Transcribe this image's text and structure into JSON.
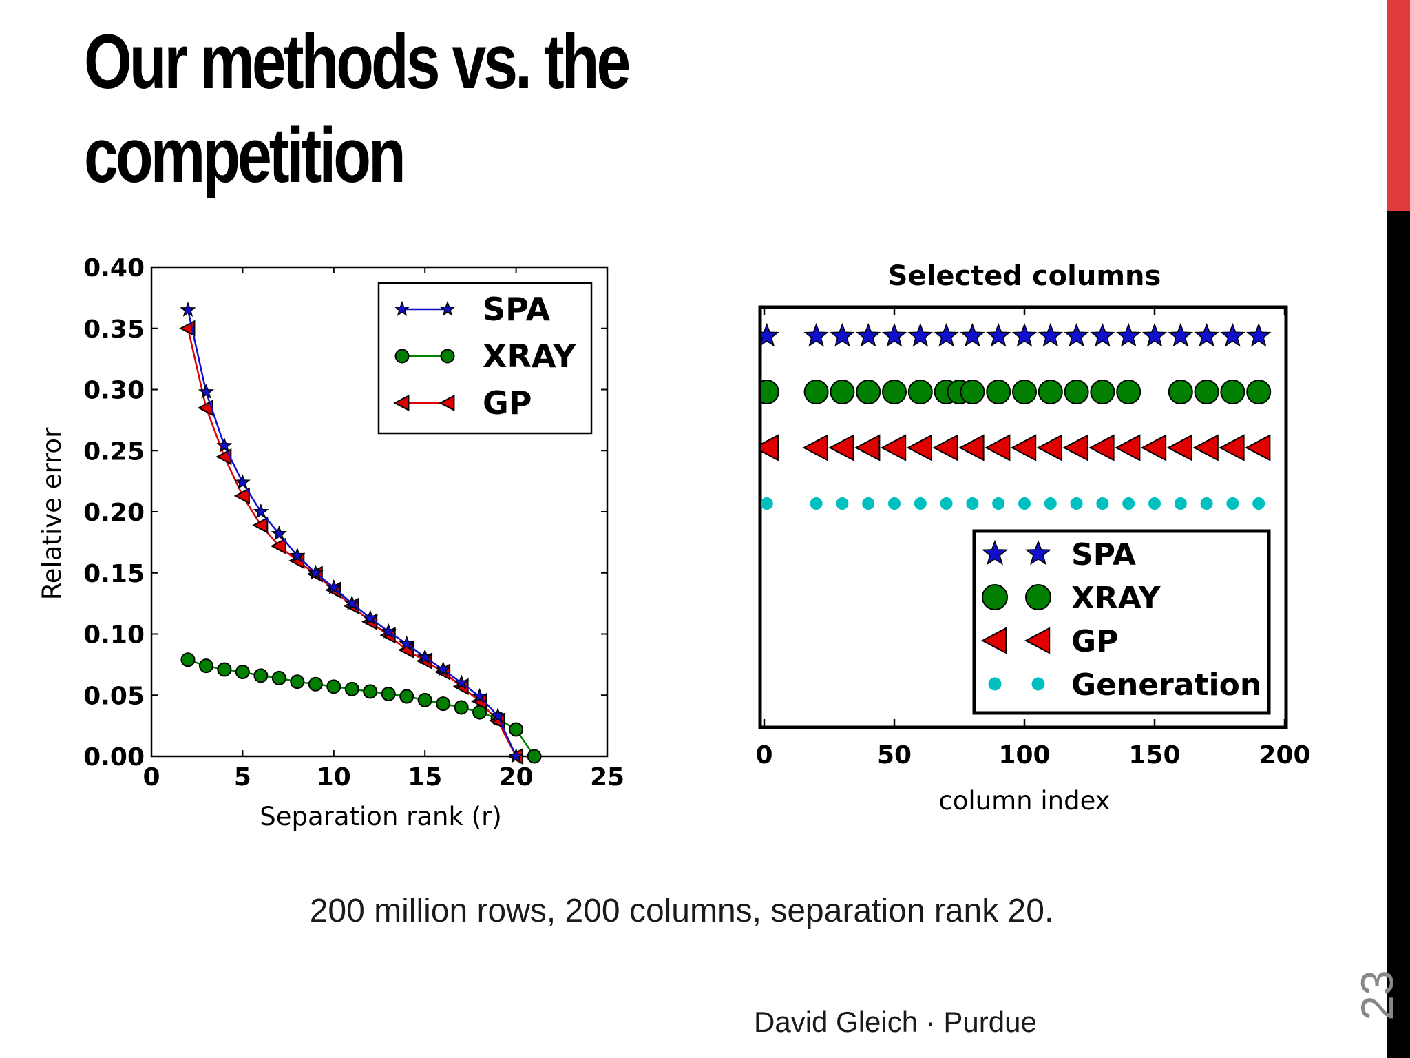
{
  "slide": {
    "title_line_1": "Our methods vs. the",
    "title_line_2": "competition",
    "caption": "200 million rows, 200 columns, separation rank 20.",
    "footer": "David Gleich · Purdue",
    "page_number": "23",
    "accent_color": "#e03a3a"
  },
  "chart_data": [
    {
      "type": "line",
      "title": "",
      "xlabel": "Separation rank (r)",
      "ylabel": "Relative error",
      "xlim": [
        0,
        25
      ],
      "ylim": [
        0,
        0.4
      ],
      "xticks": [
        "0",
        "5",
        "10",
        "15",
        "20",
        "25"
      ],
      "yticks": [
        "0.00",
        "0.05",
        "0.10",
        "0.15",
        "0.20",
        "0.25",
        "0.30",
        "0.35",
        "0.40"
      ],
      "legend_position": "top-right",
      "series": [
        {
          "name": "SPA",
          "color": "#1010cc",
          "marker": "star",
          "x": [
            2,
            3,
            4,
            5,
            6,
            7,
            8,
            9,
            10,
            11,
            12,
            13,
            14,
            15,
            16,
            17,
            18,
            19,
            20
          ],
          "y": [
            0.365,
            0.298,
            0.254,
            0.224,
            0.2,
            0.182,
            0.164,
            0.15,
            0.138,
            0.125,
            0.113,
            0.102,
            0.092,
            0.081,
            0.071,
            0.06,
            0.049,
            0.033,
            0.0
          ]
        },
        {
          "name": "XRAY",
          "color": "#007f00",
          "marker": "circle",
          "x": [
            2,
            3,
            4,
            5,
            6,
            7,
            8,
            9,
            10,
            11,
            12,
            13,
            14,
            15,
            16,
            17,
            18,
            19,
            20,
            21
          ],
          "y": [
            0.079,
            0.074,
            0.071,
            0.069,
            0.066,
            0.064,
            0.061,
            0.059,
            0.057,
            0.055,
            0.053,
            0.051,
            0.049,
            0.046,
            0.043,
            0.04,
            0.036,
            0.031,
            0.022,
            0.0
          ]
        },
        {
          "name": "GP",
          "color": "#e00000",
          "marker": "triangle-left",
          "x": [
            2,
            3,
            4,
            5,
            6,
            7,
            8,
            9,
            10,
            11,
            12,
            13,
            14,
            15,
            16,
            17,
            18,
            19,
            20
          ],
          "y": [
            0.35,
            0.285,
            0.245,
            0.213,
            0.189,
            0.172,
            0.16,
            0.149,
            0.136,
            0.123,
            0.11,
            0.099,
            0.087,
            0.078,
            0.069,
            0.057,
            0.045,
            0.029,
            0.0
          ]
        }
      ]
    },
    {
      "type": "scatter",
      "title": "Selected columns",
      "xlabel": "column index",
      "ylabel": "",
      "xlim": [
        0,
        200
      ],
      "xticks": [
        "0",
        "50",
        "100",
        "150",
        "200"
      ],
      "legend_position": "lower-right",
      "series": [
        {
          "name": "SPA",
          "color": "#1010cc",
          "marker": "star",
          "row": 4,
          "x": [
            1,
            20,
            30,
            40,
            50,
            60,
            70,
            80,
            90,
            100,
            110,
            120,
            130,
            140,
            150,
            160,
            170,
            180,
            190
          ]
        },
        {
          "name": "XRAY",
          "color": "#007f00",
          "marker": "circle",
          "row": 3,
          "x": [
            1,
            20,
            30,
            40,
            50,
            60,
            70,
            75,
            80,
            90,
            100,
            110,
            120,
            130,
            140,
            160,
            170,
            180,
            190
          ]
        },
        {
          "name": "GP",
          "color": "#e00000",
          "marker": "triangle-left",
          "row": 2,
          "x": [
            1,
            20,
            30,
            40,
            50,
            60,
            70,
            80,
            90,
            100,
            110,
            120,
            130,
            140,
            150,
            160,
            170,
            180,
            190
          ]
        },
        {
          "name": "Generation",
          "color": "#00bfbf",
          "marker": "dot",
          "row": 1,
          "x": [
            1,
            20,
            30,
            40,
            50,
            60,
            70,
            80,
            90,
            100,
            110,
            120,
            130,
            140,
            150,
            160,
            170,
            180,
            190
          ]
        }
      ]
    }
  ]
}
